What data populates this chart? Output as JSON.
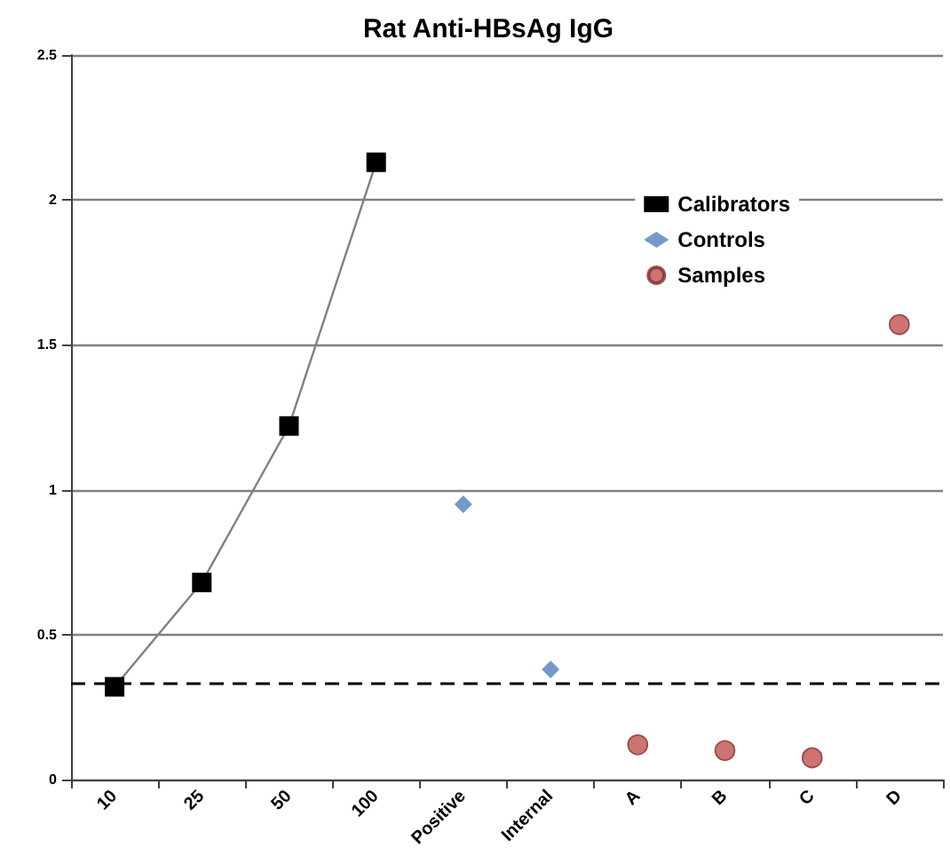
{
  "chart_data": {
    "type": "line",
    "title": "Rat Anti-HBsAg IgG",
    "categories": [
      "10",
      "25",
      "50",
      "100",
      "Positive",
      "Internal",
      "A",
      "B",
      "C",
      "D"
    ],
    "series": [
      {
        "name": "Calibrators",
        "color": "#000000",
        "marker": "square",
        "values": [
          0.32,
          0.68,
          1.22,
          2.13,
          null,
          null,
          null,
          null,
          null,
          null
        ]
      },
      {
        "name": "Controls",
        "type": "scatter",
        "color": "#4f81bd",
        "marker": "diamond",
        "values": [
          null,
          null,
          null,
          null,
          0.95,
          0.38,
          null,
          null,
          null,
          null
        ]
      },
      {
        "name": "Samples",
        "type": "scatter",
        "color": "#c0504d",
        "marker": "circle",
        "values": [
          null,
          null,
          null,
          null,
          null,
          null,
          0.12,
          0.1,
          0.075,
          1.57
        ]
      }
    ],
    "ylim": [
      0,
      2.5
    ],
    "yticks": [
      0,
      0.5,
      1,
      1.5,
      2,
      2.5
    ],
    "grid": "y",
    "legend": "top right",
    "ref_lines": [
      {
        "axis": "y",
        "value": 0.33,
        "color": "#000000",
        "line_style": "dashed"
      }
    ]
  }
}
